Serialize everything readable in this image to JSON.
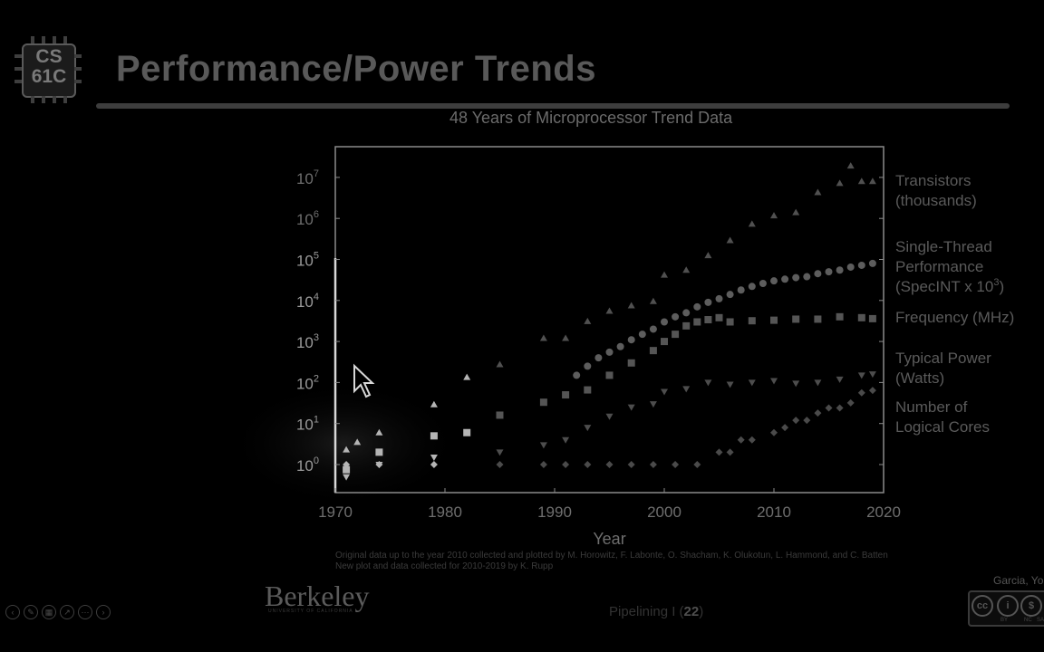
{
  "slide": {
    "logo_line1": "CS",
    "logo_line2": "61C",
    "title": "Performance/Power Trends",
    "footer_prefix": "Pipelining I (",
    "footer_page": "22",
    "footer_suffix": ")",
    "author": "Garcia, Yo",
    "berkeley": "Berkeley",
    "berkeley_sub": "UNIVERSITY OF CALIFORNIA",
    "cc_labels": [
      "BY",
      "NC",
      "SA"
    ],
    "footnote_line1": "Original data up to the year 2010 collected and plotted by M. Horowitz, F. Labonte, O. Shacham, K. Olukotun, L. Hammond, and C. Batten",
    "footnote_line2": "New plot and data collected for 2010-2019 by K. Rupp"
  },
  "colors": {
    "background": "#000000",
    "plot_frame": "#8a8a8a",
    "tick_text": "#6e6e6e",
    "highlight": "#d8d8d8"
  },
  "chart_data": {
    "type": "scatter",
    "title": "48 Years of Microprocessor Trend Data",
    "xlabel": "Year",
    "ylabel": "",
    "yscale": "log",
    "xlim": [
      1970,
      2020
    ],
    "ylim_exponent": [
      0,
      7
    ],
    "x_ticks": [
      "1970",
      "1980",
      "1990",
      "2000",
      "2010",
      "2020"
    ],
    "y_ticks": [
      {
        "base": "10",
        "exp": "0"
      },
      {
        "base": "10",
        "exp": "1"
      },
      {
        "base": "10",
        "exp": "2"
      },
      {
        "base": "10",
        "exp": "3"
      },
      {
        "base": "10",
        "exp": "4"
      },
      {
        "base": "10",
        "exp": "5"
      },
      {
        "base": "10",
        "exp": "6"
      },
      {
        "base": "10",
        "exp": "7"
      }
    ],
    "legend_placement": "right",
    "series": [
      {
        "name": "Transistors (thousands)",
        "label_lines": [
          "Transistors",
          "(thousands)"
        ],
        "marker": "triangle",
        "points": [
          [
            1971,
            2.3
          ],
          [
            1972,
            3.5
          ],
          [
            1974,
            6
          ],
          [
            1979,
            29
          ],
          [
            1982,
            134
          ],
          [
            1985,
            275
          ],
          [
            1989,
            1200
          ],
          [
            1991,
            1200
          ],
          [
            1993,
            3100
          ],
          [
            1995,
            5500
          ],
          [
            1997,
            7500
          ],
          [
            1999,
            9500
          ],
          [
            2000,
            42000
          ],
          [
            2002,
            55000
          ],
          [
            2004,
            125000
          ],
          [
            2006,
            291000
          ],
          [
            2008,
            731000
          ],
          [
            2010,
            1170000
          ],
          [
            2012,
            1400000
          ],
          [
            2014,
            4300000
          ],
          [
            2016,
            7200000
          ],
          [
            2017,
            19200000
          ],
          [
            2018,
            8000000
          ],
          [
            2019,
            8000000
          ]
        ]
      },
      {
        "name": "Single-Thread Performance (SpecINT x 10^3)",
        "label_lines": [
          "Single-Thread",
          "Performance",
          "(SpecINT x 10^3)"
        ],
        "marker": "circle",
        "points": [
          [
            1992,
            150
          ],
          [
            1993,
            250
          ],
          [
            1994,
            400
          ],
          [
            1995,
            550
          ],
          [
            1996,
            750
          ],
          [
            1997,
            1100
          ],
          [
            1998,
            1500
          ],
          [
            1999,
            2000
          ],
          [
            2000,
            3000
          ],
          [
            2001,
            4000
          ],
          [
            2002,
            5000
          ],
          [
            2003,
            7000
          ],
          [
            2004,
            9000
          ],
          [
            2005,
            11000
          ],
          [
            2006,
            14000
          ],
          [
            2007,
            18000
          ],
          [
            2008,
            22000
          ],
          [
            2009,
            26000
          ],
          [
            2010,
            30000
          ],
          [
            2011,
            33000
          ],
          [
            2012,
            36000
          ],
          [
            2013,
            38000
          ],
          [
            2014,
            45000
          ],
          [
            2015,
            50000
          ],
          [
            2016,
            55000
          ],
          [
            2017,
            65000
          ],
          [
            2018,
            72000
          ],
          [
            2019,
            80000
          ]
        ]
      },
      {
        "name": "Frequency (MHz)",
        "label_lines": [
          "Frequency (MHz)"
        ],
        "marker": "square",
        "points": [
          [
            1971,
            0.75
          ],
          [
            1974,
            2
          ],
          [
            1979,
            5
          ],
          [
            1982,
            6
          ],
          [
            1985,
            16
          ],
          [
            1989,
            33
          ],
          [
            1991,
            50
          ],
          [
            1993,
            66
          ],
          [
            1995,
            150
          ],
          [
            1997,
            300
          ],
          [
            1999,
            600
          ],
          [
            2000,
            1000
          ],
          [
            2001,
            1500
          ],
          [
            2002,
            2400
          ],
          [
            2003,
            3000
          ],
          [
            2004,
            3400
          ],
          [
            2005,
            3800
          ],
          [
            2006,
            3000
          ],
          [
            2008,
            3200
          ],
          [
            2010,
            3300
          ],
          [
            2012,
            3500
          ],
          [
            2014,
            3500
          ],
          [
            2016,
            4000
          ],
          [
            2018,
            3800
          ],
          [
            2019,
            3600
          ]
        ]
      },
      {
        "name": "Typical Power (Watts)",
        "label_lines": [
          "Typical Power",
          "(Watts)"
        ],
        "marker": "triangle-down",
        "points": [
          [
            1971,
            0.5
          ],
          [
            1974,
            1
          ],
          [
            1979,
            1.5
          ],
          [
            1985,
            2
          ],
          [
            1989,
            3
          ],
          [
            1991,
            4
          ],
          [
            1993,
            8
          ],
          [
            1995,
            15
          ],
          [
            1997,
            25
          ],
          [
            1999,
            30
          ],
          [
            2000,
            60
          ],
          [
            2002,
            70
          ],
          [
            2004,
            100
          ],
          [
            2006,
            90
          ],
          [
            2008,
            100
          ],
          [
            2010,
            110
          ],
          [
            2012,
            95
          ],
          [
            2014,
            100
          ],
          [
            2016,
            120
          ],
          [
            2018,
            150
          ],
          [
            2019,
            160
          ]
        ]
      },
      {
        "name": "Number of Logical Cores",
        "label_lines": [
          "Number of",
          "Logical Cores"
        ],
        "marker": "diamond",
        "points": [
          [
            1971,
            1
          ],
          [
            1974,
            1
          ],
          [
            1979,
            1
          ],
          [
            1985,
            1
          ],
          [
            1989,
            1
          ],
          [
            1991,
            1
          ],
          [
            1993,
            1
          ],
          [
            1995,
            1
          ],
          [
            1997,
            1
          ],
          [
            1999,
            1
          ],
          [
            2001,
            1
          ],
          [
            2003,
            1
          ],
          [
            2005,
            2
          ],
          [
            2006,
            2
          ],
          [
            2007,
            4
          ],
          [
            2008,
            4
          ],
          [
            2010,
            6
          ],
          [
            2011,
            8
          ],
          [
            2012,
            12
          ],
          [
            2013,
            12
          ],
          [
            2014,
            18
          ],
          [
            2015,
            24
          ],
          [
            2016,
            24
          ],
          [
            2017,
            32
          ],
          [
            2018,
            56
          ],
          [
            2019,
            64
          ]
        ]
      }
    ]
  }
}
